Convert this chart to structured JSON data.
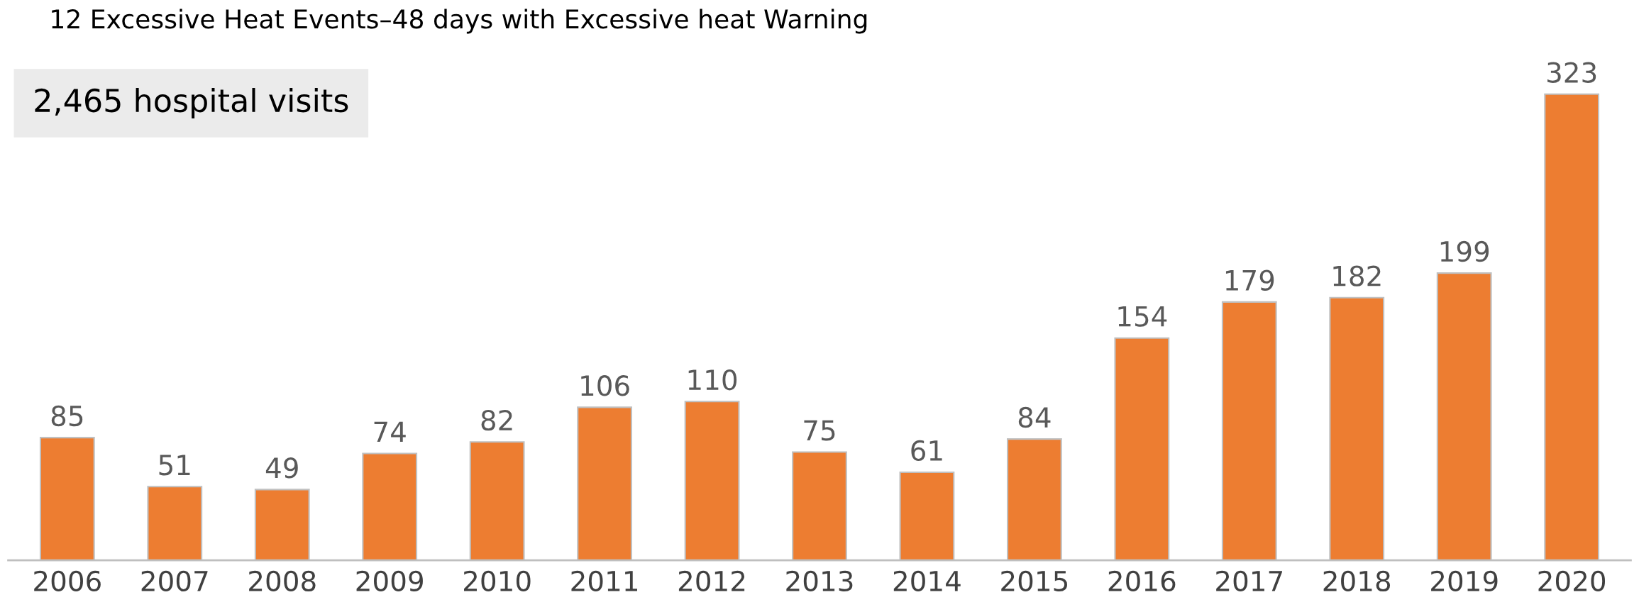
{
  "chart_data": {
    "type": "bar",
    "title": "12 Excessive Heat Events–48 days with Excessive heat Warning",
    "annotations": [
      "2,465 hospital visits"
    ],
    "categories": [
      "2006",
      "2007",
      "2008",
      "2009",
      "2010",
      "2011",
      "2012",
      "2013",
      "2014",
      "2015",
      "2016",
      "2017",
      "2018",
      "2019",
      "2020"
    ],
    "values": [
      85,
      51,
      49,
      74,
      82,
      106,
      110,
      75,
      61,
      84,
      154,
      179,
      182,
      199,
      323
    ],
    "color": "#ed7d31",
    "data_labels": true
  }
}
